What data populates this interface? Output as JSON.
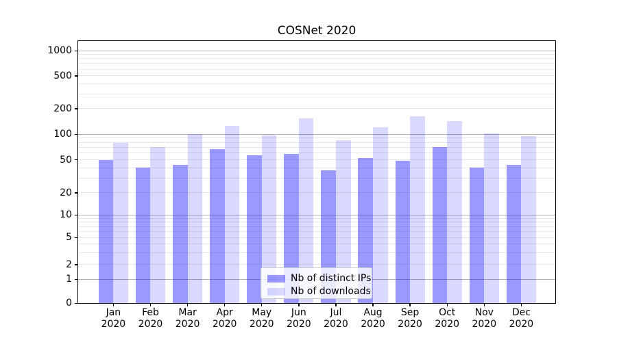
{
  "chart_data": {
    "type": "bar",
    "title": "COSNet 2020",
    "categories": [
      "Jan 2020",
      "Feb 2020",
      "Mar 2020",
      "Apr 2020",
      "May 2020",
      "Jun 2020",
      "Jul 2020",
      "Aug 2020",
      "Sep 2020",
      "Oct 2020",
      "Nov 2020",
      "Dec 2020"
    ],
    "series": [
      {
        "name": "Nb of distinct IPs",
        "color": "rgba(0,0,255,0.4)",
        "values": [
          50,
          40,
          43,
          66,
          56,
          59,
          37,
          52,
          49,
          71,
          40,
          43
        ]
      },
      {
        "name": "Nb of downloads",
        "color": "rgba(0,0,255,0.15)",
        "values": [
          78,
          70,
          100,
          125,
          96,
          152,
          84,
          120,
          163,
          143,
          102,
          95
        ]
      }
    ],
    "xlabel": "",
    "ylabel": "",
    "yscale": "symlog",
    "y_ticks": [
      0,
      1,
      2,
      5,
      10,
      20,
      50,
      100,
      200,
      500,
      1000
    ],
    "ylim": [
      0,
      1380
    ],
    "grid": "horizontal major and minor gridlines",
    "legend_position": "lower center"
  },
  "colors": {
    "bar_distinct_ips": "rgba(0,0,255,0.4)",
    "bar_downloads": "rgba(0,0,255,0.15)",
    "grid_major": "#b0b0b0",
    "grid_minor": "#e8e8e8",
    "axes": "#000000",
    "background": "#ffffff"
  }
}
